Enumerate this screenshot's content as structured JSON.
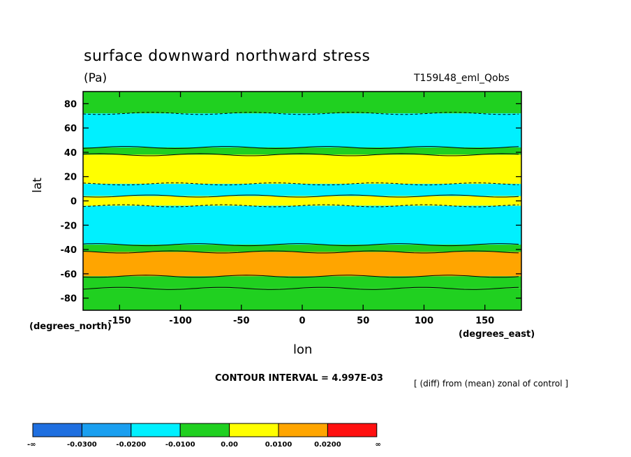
{
  "chart_data": {
    "type": "heatmap",
    "title": "surface downward northward stress",
    "units": "(Pa)",
    "run_label": "T159L48_eml_Qobs",
    "xlabel": "lon",
    "ylabel": "lat",
    "x_unit_label": "(degrees_east)",
    "y_unit_label": "(degrees_north)",
    "x_ticks": [
      -150,
      -100,
      -50,
      0,
      50,
      100,
      150
    ],
    "y_ticks": [
      80,
      60,
      40,
      20,
      0,
      -20,
      -40,
      -60,
      -80
    ],
    "xlim": [
      -180,
      180
    ],
    "ylim": [
      -90,
      90
    ],
    "contour_interval_text": "CONTOUR INTERVAL = 4.997E-03",
    "note": "[ (diff) from (mean) zonal of control ]",
    "colorbar": {
      "labels": [
        "-∞",
        "-0.0300",
        "-0.0200",
        "-0.0100",
        "0.00",
        "0.0100",
        "0.0200",
        "∞"
      ],
      "colors": [
        "#1f6fe0",
        "#1a9ff0",
        "#00f0ff",
        "#20d020",
        "#ffff00",
        "#ffa500",
        "#ff1010"
      ]
    },
    "bands": [
      {
        "lat_top": 90,
        "lat_bottom": 72,
        "level": "0.00"
      },
      {
        "lat_top": 72,
        "lat_bottom": 44,
        "level": "-0.0100"
      },
      {
        "lat_top": 44,
        "lat_bottom": 38,
        "level": "0.00"
      },
      {
        "lat_top": 38,
        "lat_bottom": 14,
        "level": "0.0100"
      },
      {
        "lat_top": 14,
        "lat_bottom": 4,
        "level": "-0.0100"
      },
      {
        "lat_top": 4,
        "lat_bottom": -4,
        "level": "0.0100"
      },
      {
        "lat_top": -4,
        "lat_bottom": -36,
        "level": "-0.0100"
      },
      {
        "lat_top": -36,
        "lat_bottom": -42,
        "level": "0.00"
      },
      {
        "lat_top": -42,
        "lat_bottom": -62,
        "level": "0.0200"
      },
      {
        "lat_top": -62,
        "lat_bottom": -72,
        "level": "0.00"
      },
      {
        "lat_top": -72,
        "lat_bottom": -90,
        "level": "0.00"
      }
    ]
  }
}
